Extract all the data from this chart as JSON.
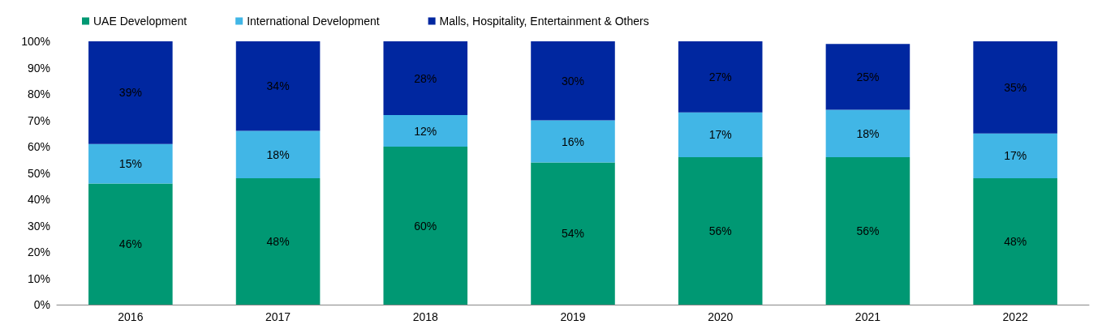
{
  "chart_data": {
    "type": "bar",
    "stacked": true,
    "categories": [
      "2016",
      "2017",
      "2018",
      "2019",
      "2020",
      "2021",
      "2022"
    ],
    "series": [
      {
        "name": "UAE Development",
        "color": "#009873",
        "values": [
          46,
          48,
          60,
          54,
          56,
          56,
          48
        ],
        "value_labels": [
          "46%",
          "48%",
          "60%",
          "54%",
          "56%",
          "56%",
          "48%"
        ]
      },
      {
        "name": "International Development",
        "color": "#41b6e6",
        "values": [
          15,
          18,
          12,
          16,
          17,
          18,
          17
        ],
        "value_labels": [
          "15%",
          "18%",
          "12%",
          "16%",
          "17%",
          "18%",
          "17%"
        ]
      },
      {
        "name": "Malls, Hospitality, Entertainment & Others",
        "color": "#0027a0",
        "values": [
          39,
          34,
          28,
          30,
          27,
          25,
          35
        ],
        "value_labels": [
          "39%",
          "34%",
          "28%",
          "30%",
          "27%",
          "25%",
          "35%"
        ]
      }
    ],
    "ylim": [
      0,
      100
    ],
    "yticks": [
      {
        "value": 0,
        "label": "0%"
      },
      {
        "value": 10,
        "label": "10%"
      },
      {
        "value": 20,
        "label": "20%"
      },
      {
        "value": 30,
        "label": "30%"
      },
      {
        "value": 40,
        "label": "40%"
      },
      {
        "value": 50,
        "label": "50%"
      },
      {
        "value": 60,
        "label": "60%"
      },
      {
        "value": 70,
        "label": "70%"
      },
      {
        "value": 80,
        "label": "80%"
      },
      {
        "value": 90,
        "label": "90%"
      },
      {
        "value": 100,
        "label": "100%"
      }
    ],
    "grid": false,
    "legend": "top left"
  }
}
